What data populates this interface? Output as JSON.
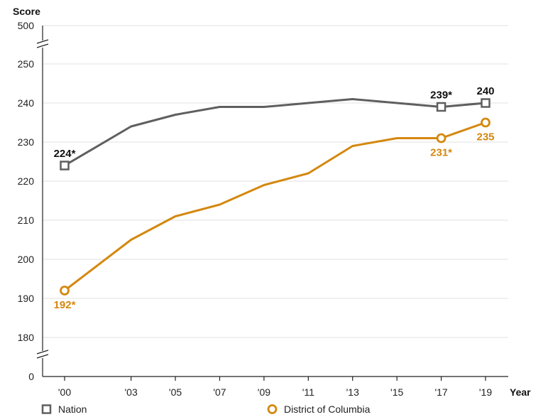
{
  "chart_data": {
    "type": "line",
    "ylabel": "Score",
    "xlabel": "Year",
    "x": [
      "'00",
      "'03",
      "'05",
      "'07",
      "'09",
      "'11",
      "'13",
      "'15",
      "'17",
      "'19"
    ],
    "y_ticks": [
      0,
      180,
      190,
      200,
      210,
      220,
      230,
      240,
      250,
      500
    ],
    "ylim_broken": [
      180,
      250
    ],
    "axis_break": true,
    "grid": true,
    "legend_position": "bottom",
    "series": [
      {
        "name": "Nation",
        "marker": "square",
        "color": "#5f5f5f",
        "values": [
          224,
          234,
          237,
          239,
          239,
          240,
          241,
          240,
          239,
          240
        ],
        "labels": [
          {
            "index": 0,
            "text": "224*"
          },
          {
            "index": 8,
            "text": "239*"
          },
          {
            "index": 9,
            "text": "240"
          }
        ]
      },
      {
        "name": "District of Columbia",
        "marker": "circle",
        "color": "#d4880f",
        "values": [
          192,
          205,
          211,
          214,
          219,
          222,
          229,
          231,
          231,
          235
        ],
        "labels": [
          {
            "index": 0,
            "text": "192*"
          },
          {
            "index": 8,
            "text": "231*"
          },
          {
            "index": 9,
            "text": "235"
          }
        ]
      }
    ]
  }
}
